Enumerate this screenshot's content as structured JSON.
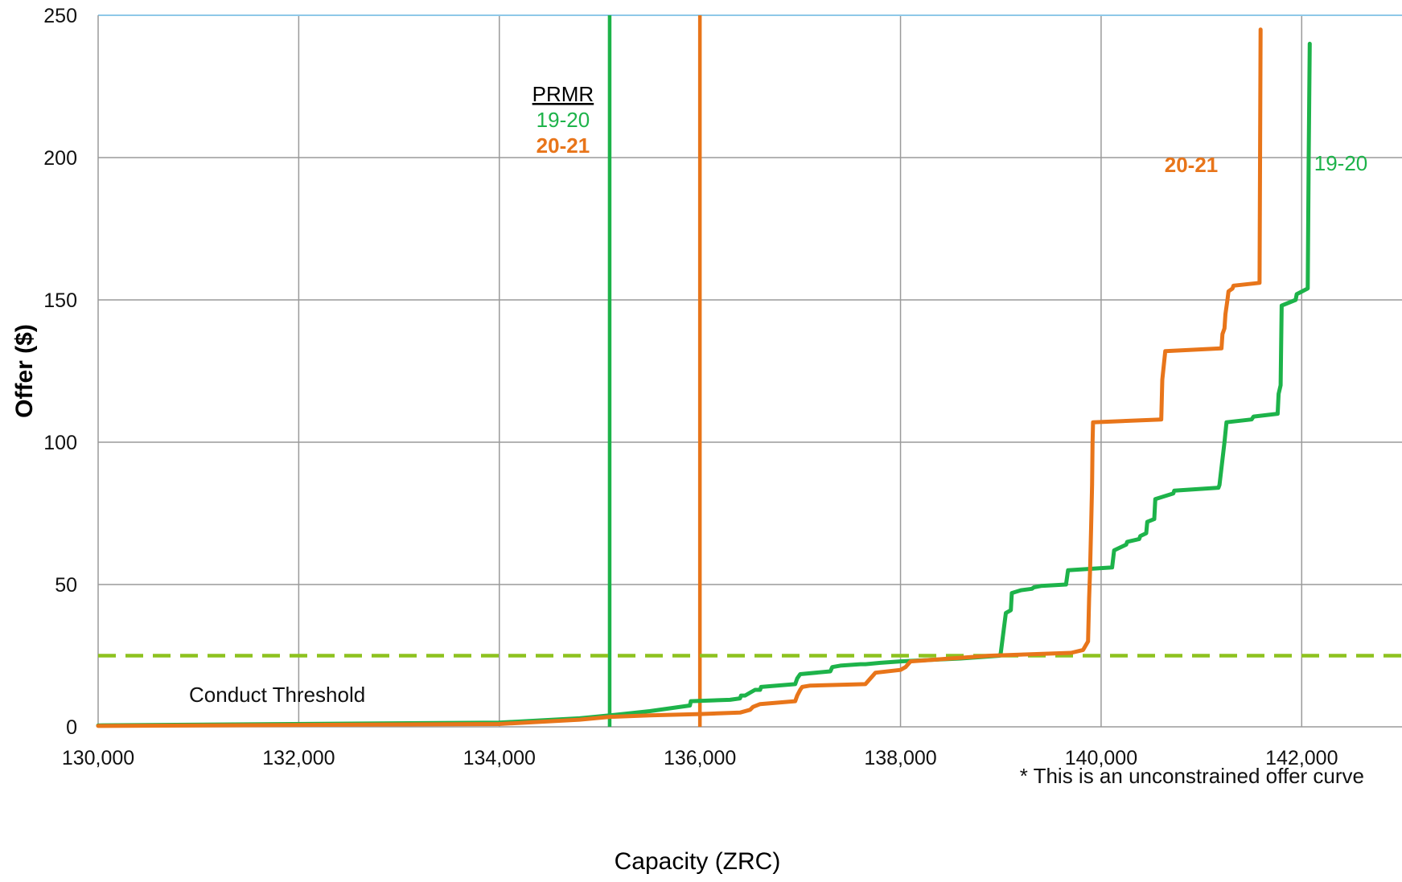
{
  "chart_data": {
    "type": "line",
    "title": "",
    "xlabel": "Capacity (ZRC)",
    "ylabel": "Offer ($)",
    "xlim": [
      130000,
      143000
    ],
    "ylim": [
      0,
      250
    ],
    "x_ticks": [
      130000,
      132000,
      134000,
      136000,
      138000,
      140000,
      142000
    ],
    "x_tick_labels": [
      "130,000",
      "132,000",
      "134,000",
      "136,000",
      "138,000",
      "140,000",
      "142,000"
    ],
    "y_ticks": [
      0,
      50,
      100,
      150,
      200,
      250
    ],
    "y_tick_labels": [
      "0",
      "50",
      "100",
      "150",
      "200",
      "250"
    ],
    "grid": true,
    "colors": {
      "green": "#1db34a",
      "orange": "#e8751a",
      "threshold": "#8dc21f",
      "grid": "#9a9a9a",
      "top_border": "#8ec8e8"
    },
    "series": [
      {
        "name": "19-20",
        "color": "#1db34a",
        "x": [
          130000,
          134000,
          134800,
          135100,
          135500,
          135900,
          135910,
          136300,
          136400,
          136410,
          136450,
          136500,
          136550,
          136600,
          136610,
          136950,
          136970,
          137000,
          137300,
          137320,
          137400,
          137600,
          137650,
          137800,
          138000,
          138300,
          138600,
          138800,
          138990,
          139000,
          139050,
          139100,
          139110,
          139200,
          139310,
          139330,
          139400,
          139650,
          139670,
          140110,
          140130,
          140250,
          140260,
          140380,
          140390,
          140450,
          140460,
          140530,
          140540,
          140720,
          140730,
          141170,
          141180,
          141230,
          141250,
          141500,
          141520,
          141760,
          141770,
          141790,
          141800,
          141940,
          141950,
          142060,
          142070,
          142080
        ],
        "y": [
          0.5,
          1.5,
          3,
          4,
          5.5,
          7.5,
          9,
          9.5,
          10,
          11,
          11,
          12,
          13,
          13,
          14,
          15,
          17,
          18.5,
          19.5,
          21,
          21.5,
          22,
          22,
          22.5,
          23,
          23.5,
          24,
          24.5,
          25,
          26,
          40,
          41,
          47,
          48,
          48.5,
          49,
          49.5,
          50,
          55,
          56,
          62,
          64,
          65,
          66,
          67,
          68,
          72,
          73,
          80,
          82,
          83,
          84,
          85,
          100,
          107,
          108,
          109,
          110,
          117,
          120,
          148,
          150,
          152,
          154,
          200,
          240
        ]
      },
      {
        "name": "20-21",
        "color": "#e8751a",
        "x": [
          130000,
          134000,
          134800,
          135100,
          135500,
          136000,
          136400,
          136500,
          136530,
          136600,
          136950,
          136970,
          137000,
          137020,
          137100,
          137650,
          137700,
          137750,
          138000,
          138050,
          138100,
          138500,
          138900,
          139300,
          139700,
          139820,
          139870,
          139880,
          139890,
          139900,
          139910,
          139915,
          139920,
          140600,
          140610,
          140640,
          141200,
          141210,
          141230,
          141240,
          141260,
          141270,
          141310,
          141320,
          141580,
          141590
        ],
        "y": [
          0.3,
          1,
          2.5,
          3.5,
          4,
          4.5,
          5,
          6,
          7,
          8,
          9,
          11,
          13,
          14,
          14.5,
          15,
          17,
          19,
          20,
          21,
          23,
          24,
          25,
          25.5,
          26,
          27,
          30,
          45,
          55,
          70,
          85,
          100,
          107,
          108,
          122,
          132,
          133,
          138,
          140,
          145,
          150,
          153,
          154,
          155,
          156,
          245
        ]
      }
    ],
    "reference_lines": [
      {
        "orientation": "vertical",
        "x": 135100,
        "color": "#1db34a"
      },
      {
        "orientation": "vertical",
        "x": 136000,
        "color": "#e8751a"
      },
      {
        "orientation": "horizontal",
        "y": 25,
        "color": "#8dc21f",
        "style": "dashed"
      }
    ],
    "annotations": {
      "prmr_title": "PRMR",
      "prmr_green": "19-20",
      "prmr_orange": "20-21",
      "curve_label_orange": "20-21",
      "curve_label_green": "19-20",
      "threshold_label": "Conduct Threshold",
      "note": "* This is an unconstrained offer curve"
    }
  }
}
